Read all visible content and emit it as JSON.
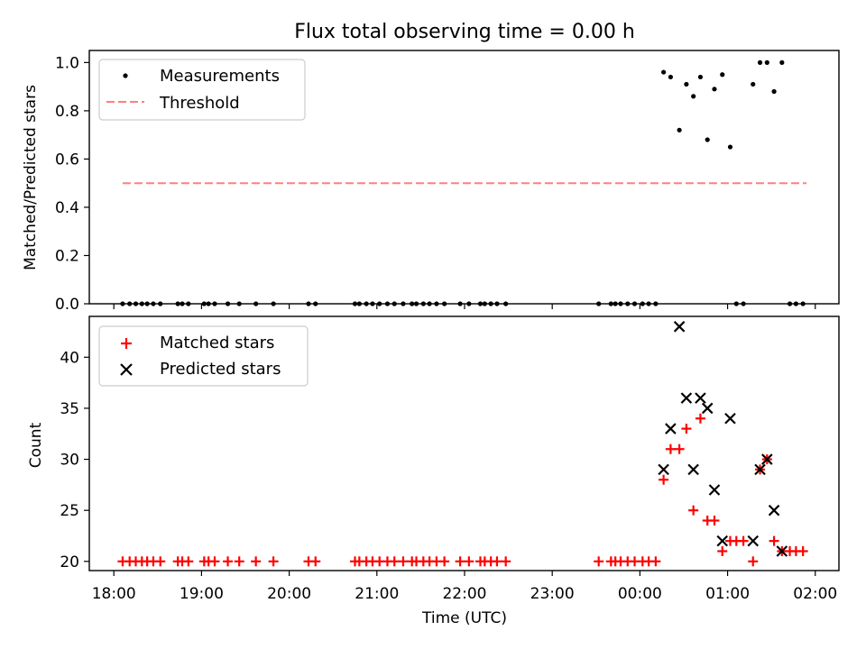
{
  "chart_data": {
    "type": "scatter",
    "title": "Flux total observing time = 0.00 h",
    "xlabel": "Time (UTC)",
    "x_tick_labels": [
      "18:00",
      "19:00",
      "20:00",
      "21:00",
      "22:00",
      "23:00",
      "00:00",
      "01:00",
      "02:00"
    ],
    "x_tick_hours": [
      18,
      19,
      20,
      21,
      22,
      23,
      24,
      25,
      26
    ],
    "xlim_hours": [
      17.72,
      26.27
    ],
    "top_panel": {
      "ylabel": "Matched/Predicted stars",
      "ylim": [
        0,
        1.05
      ],
      "y_ticks": [
        "0.0",
        "0.2",
        "0.4",
        "0.6",
        "0.8",
        "1.0"
      ],
      "y_tick_values": [
        0,
        0.2,
        0.4,
        0.6,
        0.8,
        1.0
      ],
      "legend_position": "upper left",
      "series": [
        {
          "name": "Measurements",
          "marker": "dot",
          "color": "#000000",
          "points": [
            [
              18.1,
              0
            ],
            [
              18.18,
              0
            ],
            [
              18.25,
              0
            ],
            [
              18.32,
              0
            ],
            [
              18.38,
              0
            ],
            [
              18.45,
              0
            ],
            [
              18.53,
              0
            ],
            [
              18.73,
              0
            ],
            [
              18.78,
              0
            ],
            [
              18.85,
              0
            ],
            [
              19.03,
              0
            ],
            [
              19.08,
              0
            ],
            [
              19.15,
              0
            ],
            [
              19.3,
              0
            ],
            [
              19.43,
              0
            ],
            [
              19.62,
              0
            ],
            [
              19.82,
              0
            ],
            [
              20.22,
              0
            ],
            [
              20.3,
              0
            ],
            [
              20.75,
              0
            ],
            [
              20.8,
              0
            ],
            [
              20.88,
              0
            ],
            [
              20.95,
              0
            ],
            [
              21.03,
              0
            ],
            [
              21.12,
              0
            ],
            [
              21.2,
              0
            ],
            [
              21.3,
              0
            ],
            [
              21.4,
              0
            ],
            [
              21.45,
              0
            ],
            [
              21.53,
              0
            ],
            [
              21.6,
              0
            ],
            [
              21.68,
              0
            ],
            [
              21.77,
              0
            ],
            [
              21.95,
              0
            ],
            [
              22.05,
              0
            ],
            [
              22.18,
              0
            ],
            [
              22.23,
              0
            ],
            [
              22.3,
              0
            ],
            [
              22.37,
              0
            ],
            [
              22.47,
              0
            ],
            [
              23.53,
              0
            ],
            [
              23.67,
              0
            ],
            [
              23.72,
              0
            ],
            [
              23.78,
              0
            ],
            [
              23.86,
              0
            ],
            [
              23.94,
              0
            ],
            [
              24.03,
              0
            ],
            [
              24.1,
              0
            ],
            [
              24.18,
              0
            ],
            [
              24.27,
              0.96
            ],
            [
              24.35,
              0.94
            ],
            [
              24.45,
              0.72
            ],
            [
              24.53,
              0.91
            ],
            [
              24.61,
              0.86
            ],
            [
              24.69,
              0.94
            ],
            [
              24.77,
              0.68
            ],
            [
              24.85,
              0.89
            ],
            [
              24.94,
              0.95
            ],
            [
              25.03,
              0.65
            ],
            [
              25.1,
              0
            ],
            [
              25.18,
              0
            ],
            [
              25.29,
              0.91
            ],
            [
              25.37,
              1.0
            ],
            [
              25.45,
              1.0
            ],
            [
              25.53,
              0.88
            ],
            [
              25.62,
              1.0
            ],
            [
              25.71,
              0
            ],
            [
              25.78,
              0
            ],
            [
              25.86,
              0
            ]
          ]
        },
        {
          "name": "Threshold",
          "marker": "dashed-line",
          "color": "#ff7f7f",
          "points": [
            [
              18.1,
              0.5
            ],
            [
              25.9,
              0.5
            ]
          ]
        }
      ]
    },
    "bottom_panel": {
      "ylabel": "Count",
      "ylim": [
        19.1,
        44.0
      ],
      "y_ticks": [
        "20",
        "25",
        "30",
        "35",
        "40"
      ],
      "y_tick_values": [
        20,
        25,
        30,
        35,
        40
      ],
      "legend_position": "upper left",
      "series": [
        {
          "name": "Matched stars",
          "marker": "plus",
          "color": "#ff0000",
          "points": [
            [
              18.1,
              20
            ],
            [
              18.18,
              20
            ],
            [
              18.25,
              20
            ],
            [
              18.32,
              20
            ],
            [
              18.38,
              20
            ],
            [
              18.45,
              20
            ],
            [
              18.53,
              20
            ],
            [
              18.73,
              20
            ],
            [
              18.78,
              20
            ],
            [
              18.85,
              20
            ],
            [
              19.03,
              20
            ],
            [
              19.08,
              20
            ],
            [
              19.15,
              20
            ],
            [
              19.3,
              20
            ],
            [
              19.43,
              20
            ],
            [
              19.62,
              20
            ],
            [
              19.82,
              20
            ],
            [
              20.22,
              20
            ],
            [
              20.3,
              20
            ],
            [
              20.75,
              20
            ],
            [
              20.8,
              20
            ],
            [
              20.88,
              20
            ],
            [
              20.95,
              20
            ],
            [
              21.03,
              20
            ],
            [
              21.12,
              20
            ],
            [
              21.2,
              20
            ],
            [
              21.3,
              20
            ],
            [
              21.4,
              20
            ],
            [
              21.45,
              20
            ],
            [
              21.53,
              20
            ],
            [
              21.6,
              20
            ],
            [
              21.68,
              20
            ],
            [
              21.77,
              20
            ],
            [
              21.95,
              20
            ],
            [
              22.05,
              20
            ],
            [
              22.18,
              20
            ],
            [
              22.23,
              20
            ],
            [
              22.3,
              20
            ],
            [
              22.37,
              20
            ],
            [
              22.47,
              20
            ],
            [
              23.53,
              20
            ],
            [
              23.67,
              20
            ],
            [
              23.72,
              20
            ],
            [
              23.78,
              20
            ],
            [
              23.86,
              20
            ],
            [
              23.94,
              20
            ],
            [
              24.03,
              20
            ],
            [
              24.1,
              20
            ],
            [
              24.18,
              20
            ],
            [
              24.27,
              28
            ],
            [
              24.35,
              31
            ],
            [
              24.45,
              31
            ],
            [
              24.53,
              33
            ],
            [
              24.61,
              25
            ],
            [
              24.69,
              34
            ],
            [
              24.77,
              24
            ],
            [
              24.85,
              24
            ],
            [
              24.94,
              21
            ],
            [
              25.03,
              22
            ],
            [
              25.1,
              22
            ],
            [
              25.18,
              22
            ],
            [
              25.29,
              20
            ],
            [
              25.37,
              29
            ],
            [
              25.45,
              30
            ],
            [
              25.53,
              22
            ],
            [
              25.62,
              21
            ],
            [
              25.71,
              21
            ],
            [
              25.78,
              21
            ],
            [
              25.86,
              21
            ]
          ]
        },
        {
          "name": "Predicted stars",
          "marker": "x",
          "color": "#000000",
          "points": [
            [
              24.27,
              29
            ],
            [
              24.35,
              33
            ],
            [
              24.45,
              43
            ],
            [
              24.53,
              36
            ],
            [
              24.61,
              29
            ],
            [
              24.69,
              36
            ],
            [
              24.77,
              35
            ],
            [
              24.85,
              27
            ],
            [
              24.94,
              22
            ],
            [
              25.03,
              34
            ],
            [
              25.29,
              22
            ],
            [
              25.37,
              29
            ],
            [
              25.45,
              30
            ],
            [
              25.53,
              25
            ],
            [
              25.62,
              21
            ]
          ]
        }
      ]
    }
  }
}
